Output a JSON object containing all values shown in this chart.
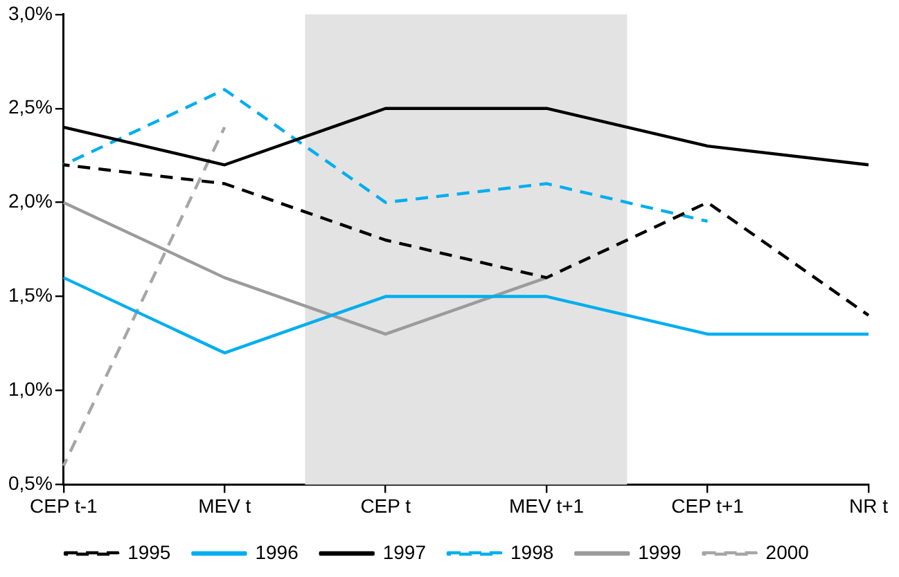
{
  "chart_data": {
    "type": "line",
    "categories": [
      "CEP t-1",
      "MEV t",
      "CEP t",
      "MEV t+1",
      "CEP t+1",
      "NR t"
    ],
    "series": [
      {
        "name": "1995",
        "color": "#000000",
        "line_style": "dashed",
        "values": [
          2.2,
          2.1,
          1.8,
          1.6,
          2.0,
          1.4
        ]
      },
      {
        "name": "1996",
        "color": "#00aeef",
        "line_style": "solid",
        "values": [
          1.6,
          1.2,
          1.5,
          1.5,
          1.3,
          1.3
        ]
      },
      {
        "name": "1997",
        "color": "#000000",
        "line_style": "solid",
        "values": [
          2.4,
          2.2,
          2.5,
          2.5,
          2.3,
          2.2
        ]
      },
      {
        "name": "1998",
        "color": "#00aeef",
        "line_style": "dashed",
        "values": [
          2.2,
          2.6,
          2.0,
          2.1,
          1.9,
          null
        ]
      },
      {
        "name": "1999",
        "color": "#9b9b9b",
        "line_style": "solid",
        "values": [
          2.0,
          1.6,
          1.3,
          1.6,
          null,
          null
        ]
      },
      {
        "name": "2000",
        "color": "#a6a6a6",
        "line_style": "dashed",
        "values": [
          0.6,
          2.4,
          null,
          null,
          null,
          null
        ]
      }
    ],
    "ylim": [
      0.5,
      3.0
    ],
    "yticks": [
      {
        "value": 0.5,
        "label": "0,5%"
      },
      {
        "value": 1.0,
        "label": "1,0%"
      },
      {
        "value": 1.5,
        "label": "1,5%"
      },
      {
        "value": 2.0,
        "label": "2,0%"
      },
      {
        "value": 2.5,
        "label": "2,5%"
      },
      {
        "value": 3.0,
        "label": "3,0%"
      }
    ],
    "bands": [
      {
        "axis": "x",
        "from": "CEP t",
        "to": "MEV t+1",
        "color": "#e3e3e3"
      }
    ],
    "grid": false,
    "legend": "bottom",
    "marker": "none"
  }
}
